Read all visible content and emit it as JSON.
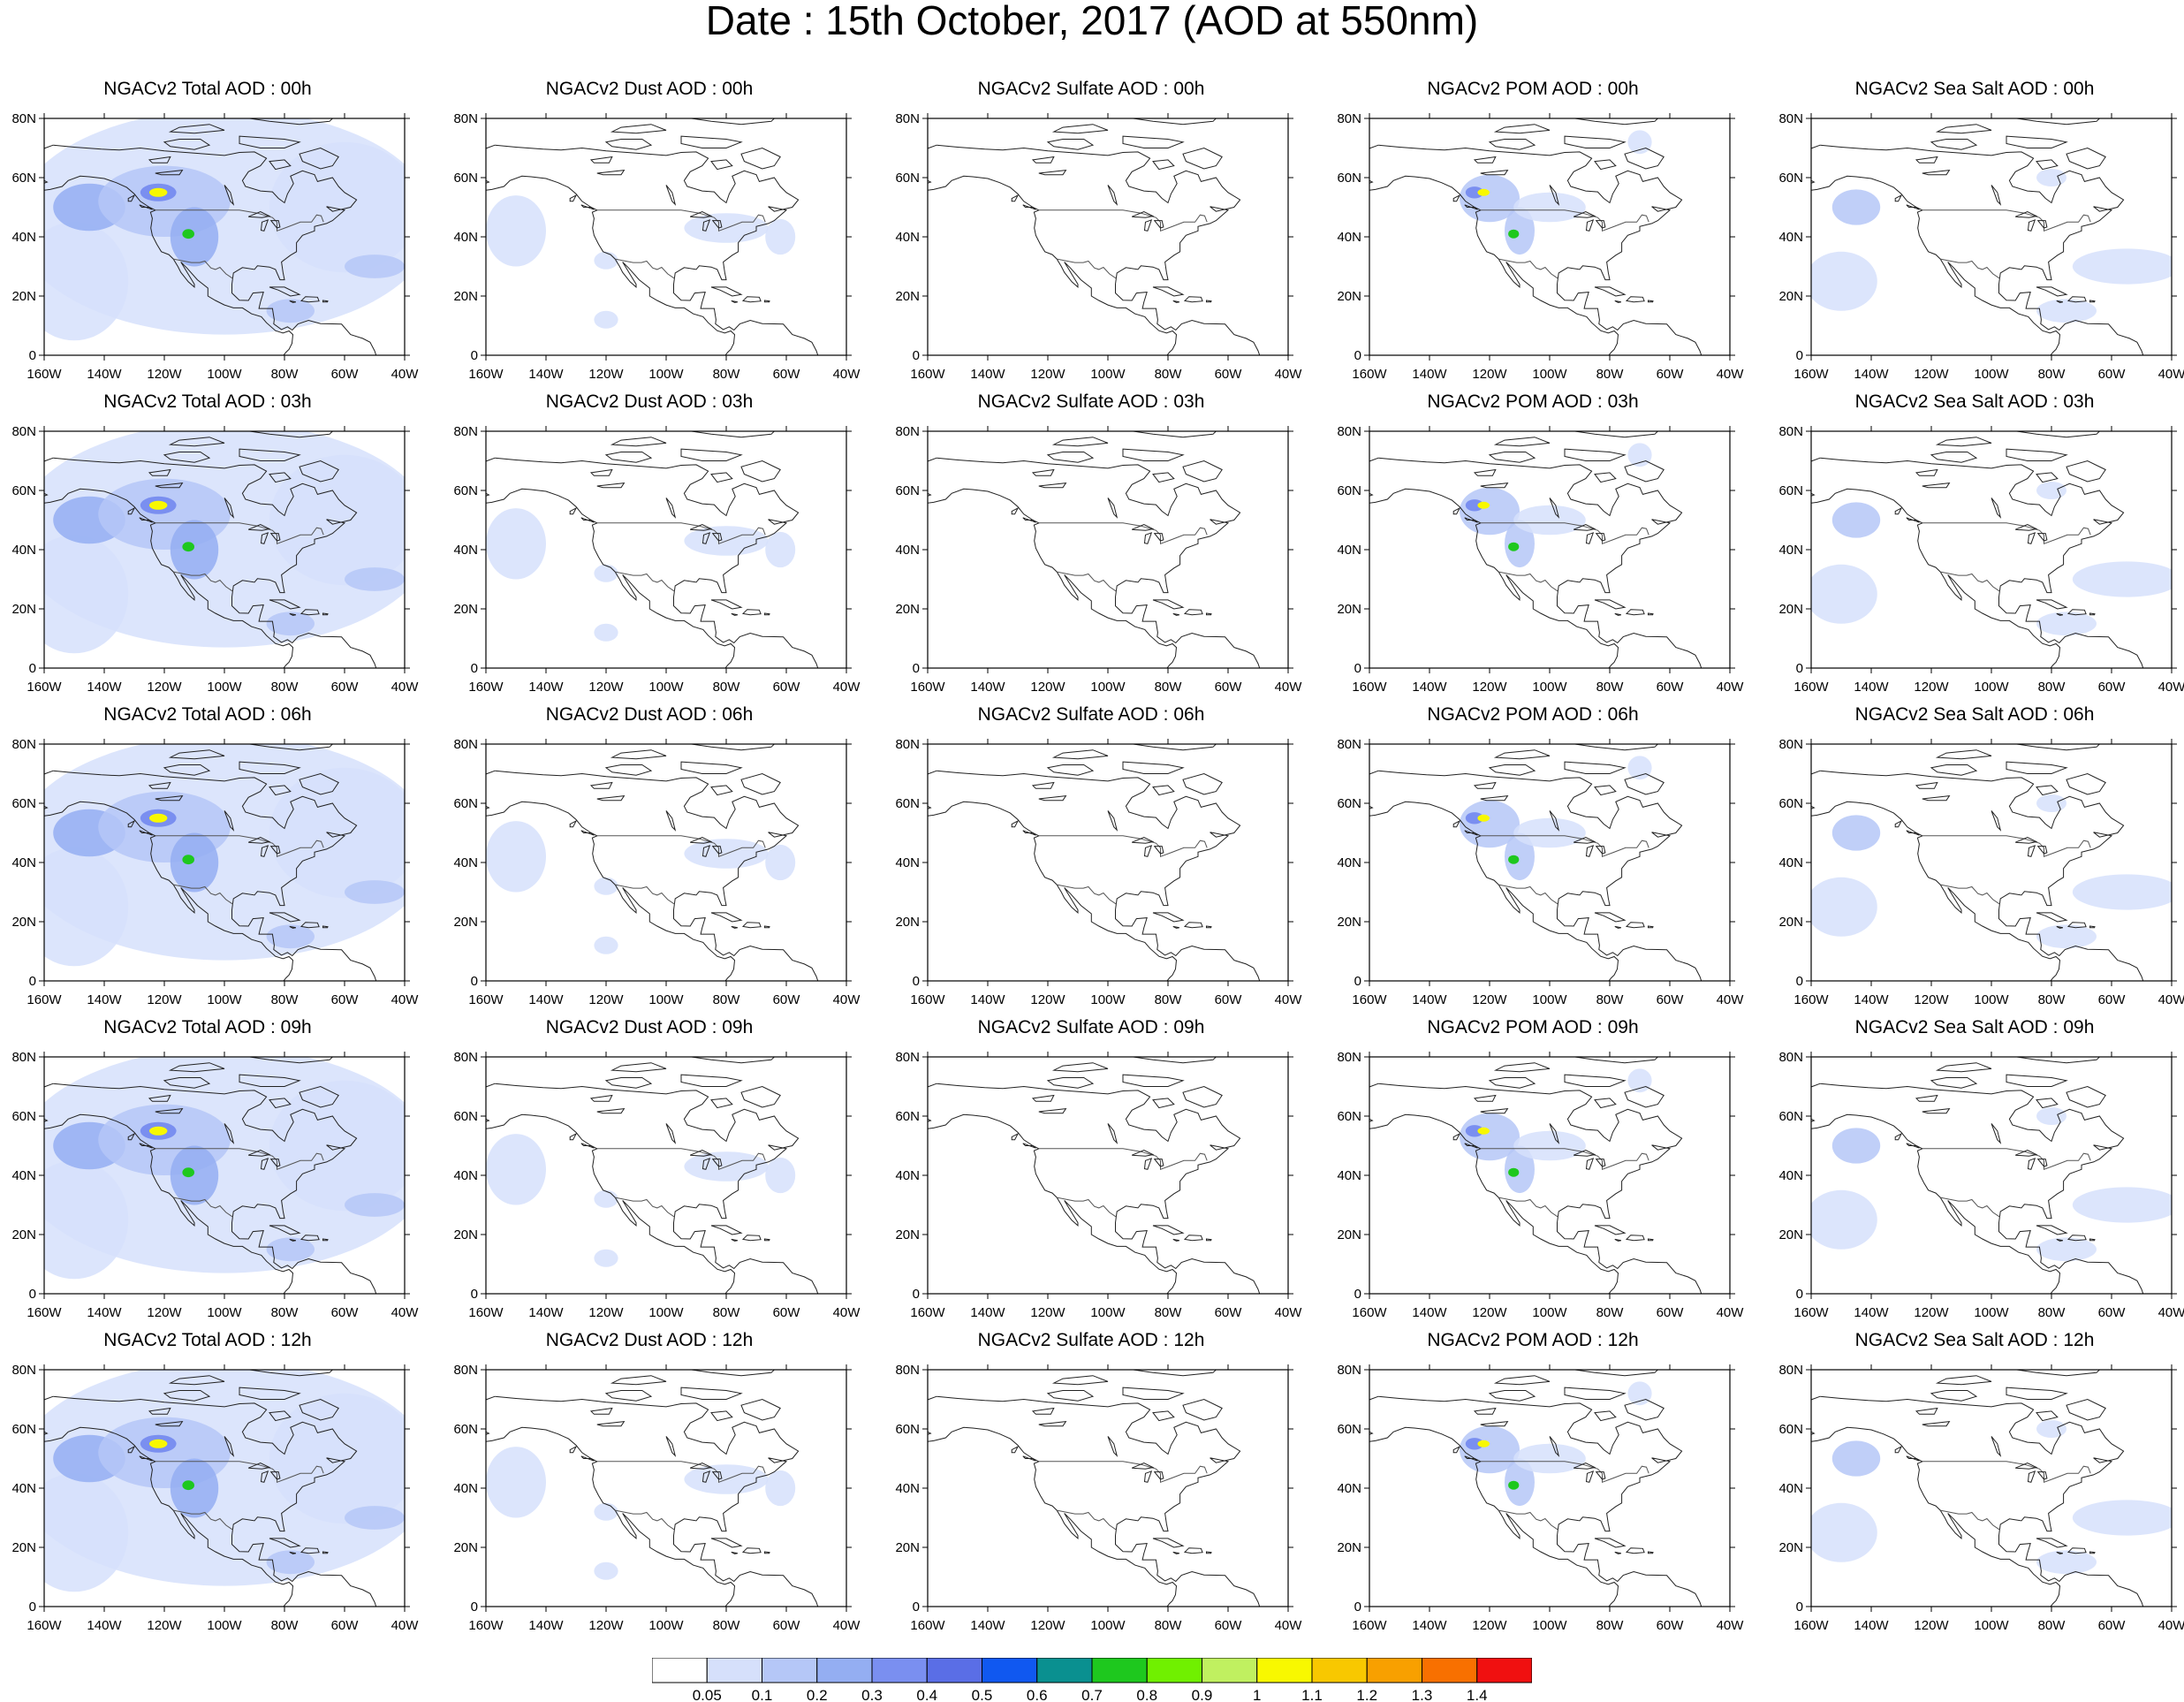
{
  "title": "Date : 15th October, 2017 (AOD at 550nm)",
  "axes": {
    "y_ticks": [
      "80N",
      "60N",
      "40N",
      "20N",
      "0"
    ],
    "x_ticks": [
      "160W",
      "140W",
      "120W",
      "100W",
      "80W",
      "60W",
      "40W"
    ]
  },
  "colorbar": {
    "colors": [
      "#ffffff",
      "#d6e0fb",
      "#b5c7f7",
      "#94aef2",
      "#7a8ff0",
      "#5a6ee6",
      "#1058f0",
      "#0a9090",
      "#1ec81e",
      "#70f000",
      "#c0f060",
      "#f8f800",
      "#f8c800",
      "#f8a000",
      "#f87000",
      "#f01010"
    ],
    "labels": [
      "0.05",
      "0.1",
      "0.2",
      "0.3",
      "0.4",
      "0.5",
      "0.6",
      "0.7",
      "0.8",
      "0.9",
      "1",
      "1.1",
      "1.2",
      "1.3",
      "1.4"
    ]
  },
  "rows": [
    {
      "panels": [
        {
          "title": "NGACv2 Total AOD : 00h",
          "type": "total"
        },
        {
          "title": "NGACv2 Dust AOD : 00h",
          "type": "dust"
        },
        {
          "title": "NGACv2 Sulfate AOD : 00h",
          "type": "sulfate"
        },
        {
          "title": "NGACv2 POM AOD : 00h",
          "type": "pom"
        },
        {
          "title": "NGACv2 Sea Salt AOD : 00h",
          "type": "seasalt"
        }
      ]
    },
    {
      "panels": [
        {
          "title": "NGACv2 Total AOD : 03h",
          "type": "total"
        },
        {
          "title": "NGACv2 Dust AOD : 03h",
          "type": "dust"
        },
        {
          "title": "NGACv2 Sulfate AOD : 03h",
          "type": "sulfate"
        },
        {
          "title": "NGACv2 POM AOD : 03h",
          "type": "pom"
        },
        {
          "title": "NGACv2 Sea Salt AOD : 03h",
          "type": "seasalt"
        }
      ]
    },
    {
      "panels": [
        {
          "title": "NGACv2 Total AOD : 06h",
          "type": "total"
        },
        {
          "title": "NGACv2 Dust AOD : 06h",
          "type": "dust"
        },
        {
          "title": "NGACv2 Sulfate AOD : 06h",
          "type": "sulfate"
        },
        {
          "title": "NGACv2 POM AOD : 06h",
          "type": "pom"
        },
        {
          "title": "NGACv2 Sea Salt AOD : 06h",
          "type": "seasalt"
        }
      ]
    },
    {
      "panels": [
        {
          "title": "NGACv2 Total AOD : 09h",
          "type": "total"
        },
        {
          "title": "NGACv2 Dust AOD : 09h",
          "type": "dust"
        },
        {
          "title": "NGACv2 Sulfate AOD : 09h",
          "type": "sulfate"
        },
        {
          "title": "NGACv2 POM AOD : 09h",
          "type": "pom"
        },
        {
          "title": "NGACv2 Sea Salt  AOD : 09h",
          "type": "seasalt"
        }
      ]
    },
    {
      "panels": [
        {
          "title": "NGACv2 Total AOD  : 12h",
          "type": "total"
        },
        {
          "title": "NGACv2 Dust AOD : 12h",
          "type": "dust"
        },
        {
          "title": "NGACv2 Sulfate AOD : 12h",
          "type": "sulfate"
        },
        {
          "title": "NGACv2 POM  AOD : 12h",
          "type": "pom"
        },
        {
          "title": "NGACv2 Sea Salt  AOD : 12h",
          "type": "seasalt"
        }
      ]
    }
  ]
}
